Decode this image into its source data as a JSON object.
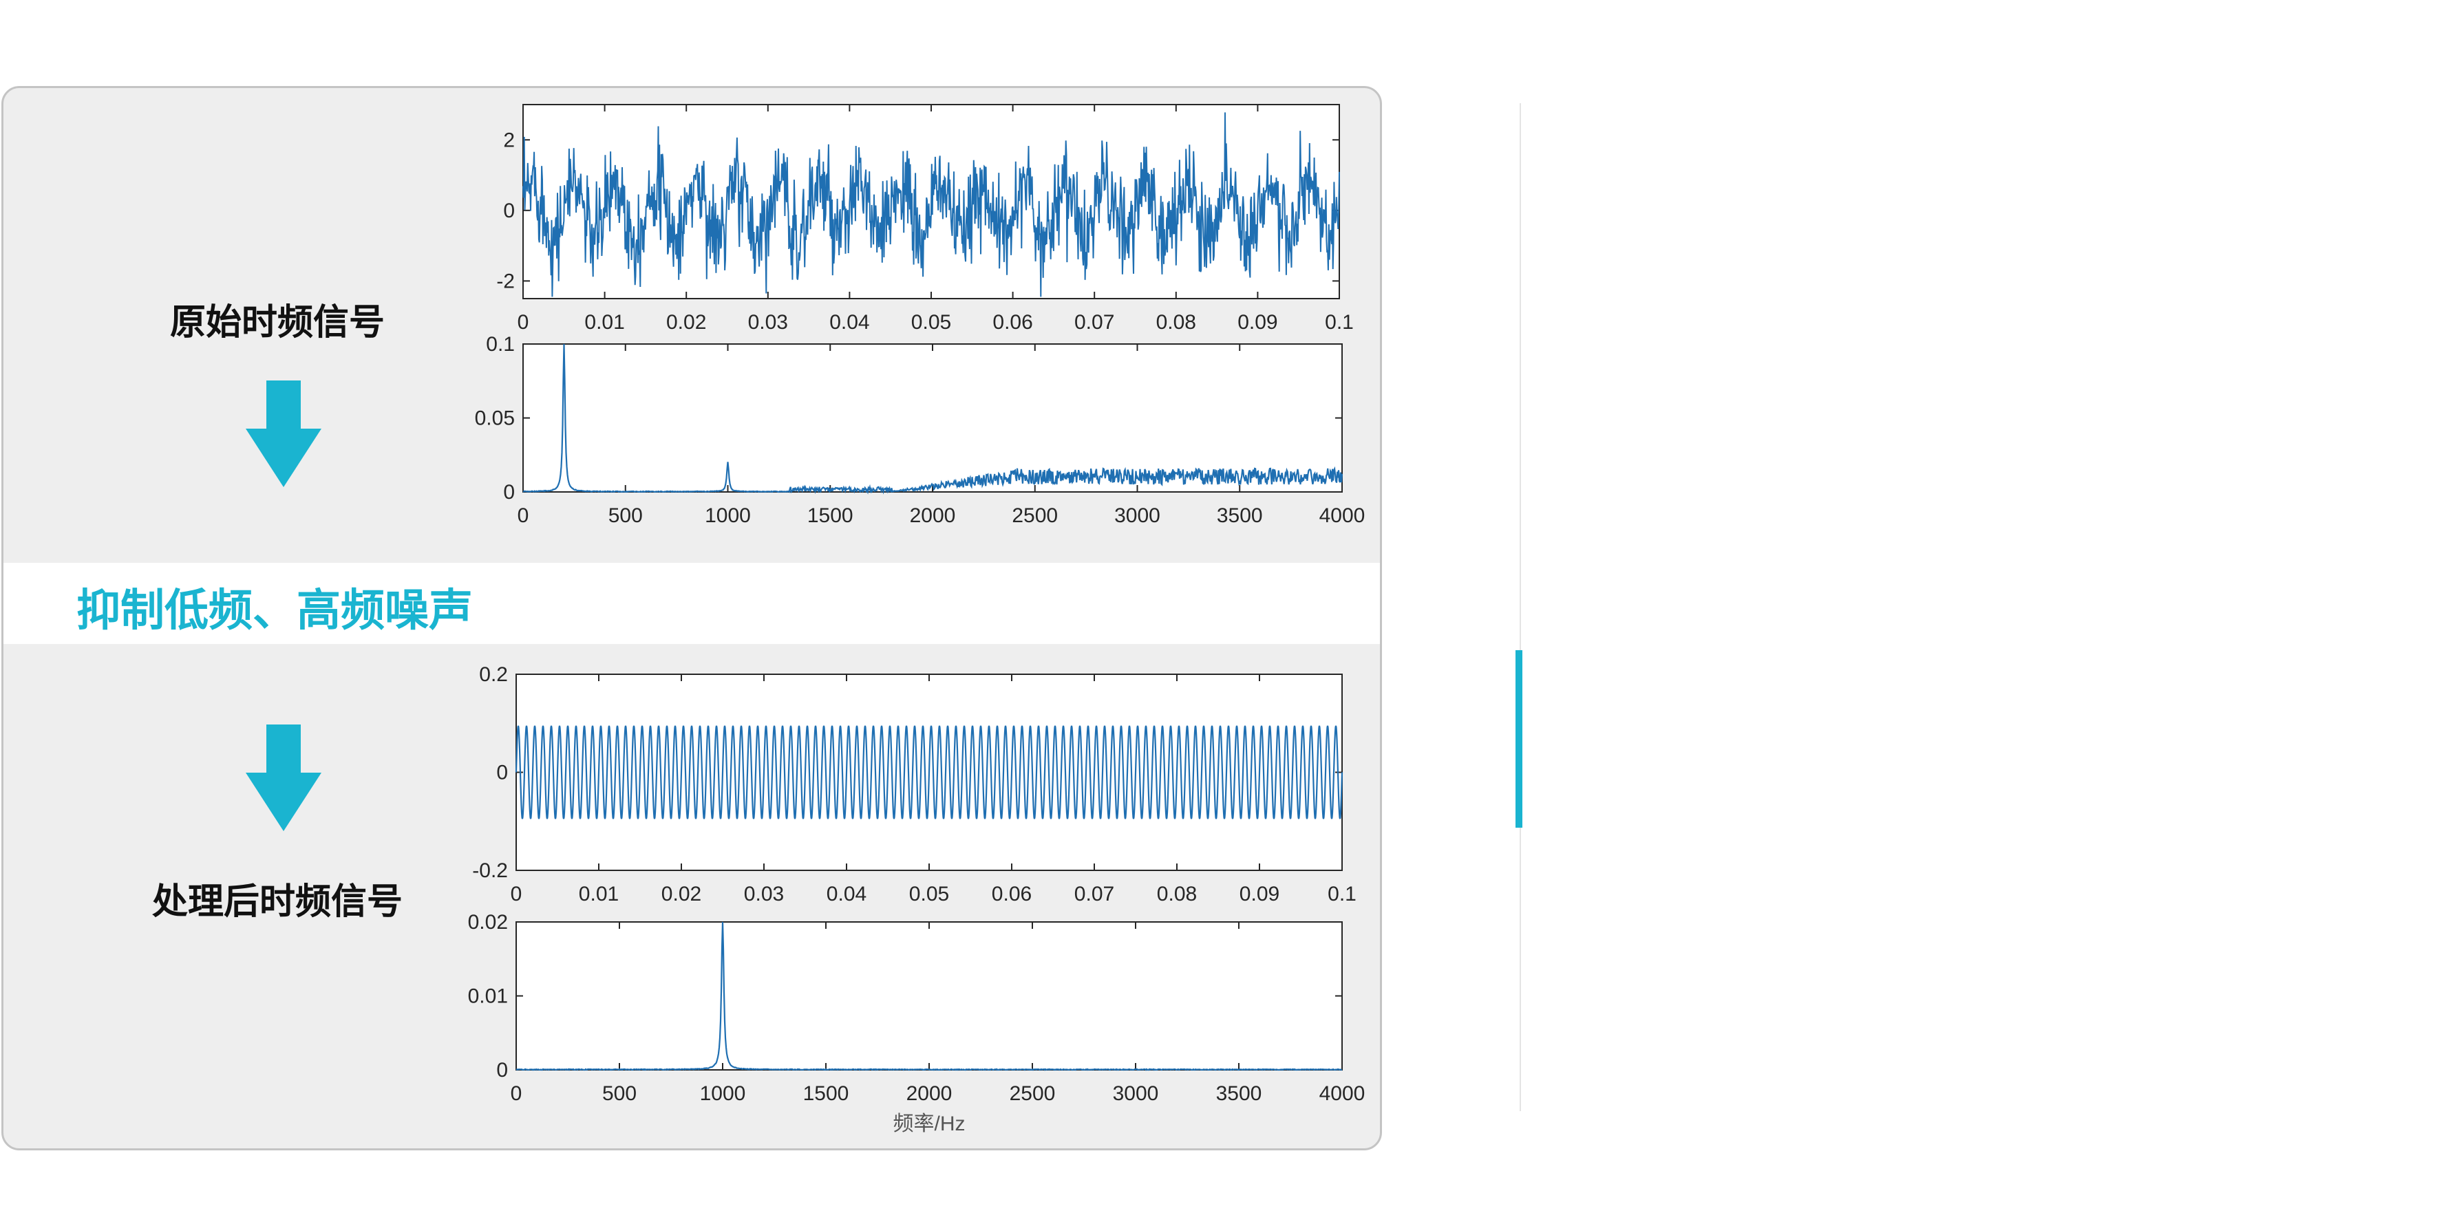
{
  "labels": {
    "original": "原始时频信号",
    "band": "抑制低频、高频噪声",
    "processed": "处理后时频信号"
  },
  "colors": {
    "accent": "#1ab4d0",
    "series": "#1f6fb2"
  },
  "icons": [
    "arrow-down-icon",
    "arrow-down-icon"
  ],
  "chart_data": [
    {
      "type": "line",
      "title": "",
      "xlabel": "",
      "ylabel": "",
      "xlim": [
        0,
        0.1
      ],
      "ylim": [
        -2.5,
        3
      ],
      "xticks": [
        "0",
        "0.01",
        "0.02",
        "0.03",
        "0.04",
        "0.05",
        "0.06",
        "0.07",
        "0.08",
        "0.09",
        "0.1"
      ],
      "yticks": [
        "-2",
        "0",
        "2"
      ],
      "series": [
        {
          "description_kind": "noisy",
          "center": 0,
          "amplitude": 1.0,
          "noise": 0.9
        }
      ]
    },
    {
      "type": "line",
      "title": "",
      "xlabel": "",
      "ylabel": "",
      "xlim": [
        0,
        4000
      ],
      "ylim": [
        0,
        0.1
      ],
      "xticks": [
        "0",
        "500",
        "1000",
        "1500",
        "2000",
        "2500",
        "3000",
        "3500",
        "4000"
      ],
      "yticks": [
        "0",
        "0.05",
        "0.1"
      ],
      "peaks": [
        {
          "x": 200,
          "y": 0.1
        },
        {
          "x": 1000,
          "y": 0.02
        }
      ],
      "noise_floor_start": 1800,
      "noise_floor_level": 0.012
    },
    {
      "type": "line",
      "title": "",
      "xlabel": "",
      "ylabel": "",
      "xlim": [
        0,
        0.1
      ],
      "ylim": [
        -0.2,
        0.2
      ],
      "xticks": [
        "0",
        "0.01",
        "0.02",
        "0.03",
        "0.04",
        "0.05",
        "0.06",
        "0.07",
        "0.08",
        "0.09",
        "0.1"
      ],
      "yticks": [
        "-0.2",
        "0",
        "0.2"
      ],
      "series": [
        {
          "frequency_hz": 1000,
          "amplitude": 0.095
        }
      ]
    },
    {
      "type": "line",
      "title": "",
      "xlabel": "频率/Hz",
      "ylabel": "",
      "xlim": [
        0,
        4000
      ],
      "ylim": [
        0,
        0.02
      ],
      "xticks": [
        "0",
        "500",
        "1000",
        "1500",
        "2000",
        "2500",
        "3000",
        "3500",
        "4000"
      ],
      "yticks": [
        "0",
        "0.01",
        "0.02"
      ],
      "peaks": [
        {
          "x": 1000,
          "y": 0.02
        }
      ]
    }
  ]
}
